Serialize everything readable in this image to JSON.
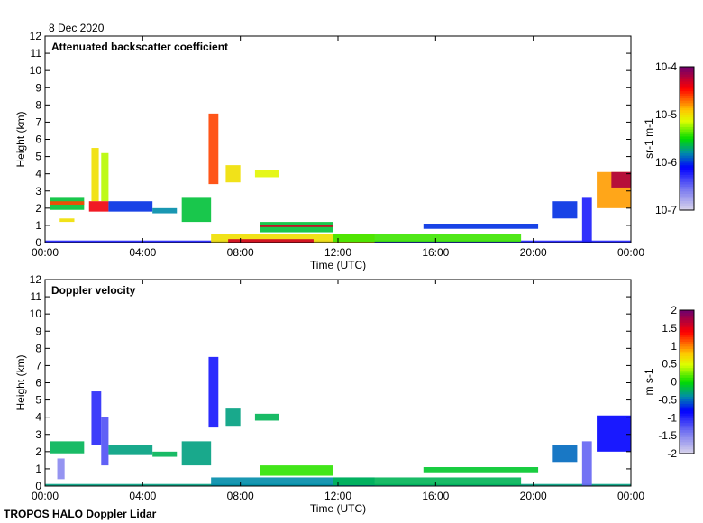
{
  "date_label": "8 Dec 2020",
  "footer": "TROPOS HALO Doppler Lidar",
  "chart_data": [
    {
      "type": "heatmap",
      "title": "Attenuated backscatter coefficient",
      "xlabel": "Time (UTC)",
      "ylabel": "Height (km)",
      "xlim": [
        0,
        24
      ],
      "ylim": [
        0,
        12
      ],
      "x_ticks": [
        "00:00",
        "04:00",
        "08:00",
        "12:00",
        "16:00",
        "20:00",
        "00:00"
      ],
      "y_ticks": [
        "0",
        "1",
        "2",
        "3",
        "4",
        "5",
        "6",
        "7",
        "8",
        "9",
        "10",
        "11",
        "12"
      ],
      "colorbar": {
        "label": "sr-1 m-1",
        "scale": "log",
        "range": [
          -7,
          -4
        ],
        "ticks": [
          "10-7",
          "10-6",
          "10-5",
          "10-4"
        ]
      },
      "features": [
        [
          0,
          24,
          0,
          0.12,
          -6.2
        ],
        [
          0.2,
          1.6,
          1.9,
          2.6,
          -5.6
        ],
        [
          0.2,
          1.6,
          2.2,
          2.4,
          -4.6
        ],
        [
          0.6,
          1.2,
          1.2,
          1.4,
          -5
        ],
        [
          1.9,
          2.2,
          2.4,
          5.5,
          -5.0
        ],
        [
          2.3,
          2.6,
          2.4,
          5.2,
          -5.2
        ],
        [
          1.8,
          2.6,
          1.8,
          2.4,
          -4.4
        ],
        [
          2.6,
          4.4,
          1.8,
          2.4,
          -6.0
        ],
        [
          4.4,
          5.4,
          1.7,
          2.0,
          -5.8
        ],
        [
          5.6,
          6.8,
          1.2,
          2.6,
          -5.6
        ],
        [
          6.7,
          7.1,
          3.4,
          7.5,
          -4.6
        ],
        [
          7.4,
          8.0,
          3.5,
          4.5,
          -5.0
        ],
        [
          8.6,
          9.6,
          3.8,
          4.2,
          -5.1
        ],
        [
          8.8,
          11.8,
          0.6,
          1.2,
          -5.6
        ],
        [
          8.8,
          11.8,
          0.9,
          1.0,
          -4.3
        ],
        [
          6.8,
          13.5,
          0.0,
          0.5,
          -5.0
        ],
        [
          7.5,
          11.0,
          0.0,
          0.2,
          -4.3
        ],
        [
          11.8,
          19.5,
          0.05,
          0.5,
          -5.4
        ],
        [
          15.5,
          20.2,
          0.8,
          1.1,
          -6.0
        ],
        [
          20.8,
          21.8,
          1.4,
          2.4,
          -6.0
        ],
        [
          22.0,
          22.4,
          0.0,
          2.6,
          -6.2
        ],
        [
          22.6,
          24,
          2.0,
          4.1,
          -4.8
        ],
        [
          23.2,
          24,
          3.2,
          4.1,
          -4.2
        ]
      ]
    },
    {
      "type": "heatmap",
      "title": "Doppler velocity",
      "xlabel": "Time (UTC)",
      "ylabel": "Height (km)",
      "xlim": [
        0,
        24
      ],
      "ylim": [
        0,
        12
      ],
      "x_ticks": [
        "00:00",
        "04:00",
        "08:00",
        "12:00",
        "16:00",
        "20:00",
        "00:00"
      ],
      "y_ticks": [
        "0",
        "1",
        "2",
        "3",
        "4",
        "5",
        "6",
        "7",
        "8",
        "9",
        "10",
        "11",
        "12"
      ],
      "colorbar": {
        "label": "m s-1",
        "scale": "linear",
        "range": [
          -2,
          2
        ],
        "ticks": [
          "-2",
          "-1.5",
          "-1",
          "-0.5",
          "0",
          "0.5",
          "1",
          "1.5",
          "2"
        ]
      },
      "features": [
        [
          0,
          24,
          0,
          0.12,
          -0.3
        ],
        [
          0.2,
          1.6,
          1.9,
          2.6,
          -0.2
        ],
        [
          0.5,
          0.8,
          0.4,
          1.6,
          -1.5
        ],
        [
          1.9,
          2.3,
          2.4,
          5.5,
          -1.0
        ],
        [
          2.3,
          2.6,
          1.2,
          4.0,
          -1.2
        ],
        [
          2.6,
          4.4,
          1.8,
          2.4,
          -0.3
        ],
        [
          4.4,
          5.4,
          1.7,
          2.0,
          -0.2
        ],
        [
          5.6,
          6.8,
          1.2,
          2.6,
          -0.3
        ],
        [
          6.7,
          7.1,
          3.4,
          7.5,
          -0.9
        ],
        [
          7.4,
          8.0,
          3.5,
          4.5,
          -0.3
        ],
        [
          8.6,
          9.6,
          3.8,
          4.2,
          -0.2
        ],
        [
          8.8,
          11.8,
          0.6,
          1.2,
          0.1
        ],
        [
          6.8,
          13.5,
          0.0,
          0.5,
          -0.4
        ],
        [
          11.8,
          19.5,
          0.05,
          0.5,
          -0.2
        ],
        [
          15.5,
          20.2,
          0.8,
          1.1,
          -0.1
        ],
        [
          20.8,
          21.8,
          1.4,
          2.4,
          -0.5
        ],
        [
          22.0,
          22.4,
          0.0,
          2.6,
          -1.3
        ],
        [
          22.6,
          24,
          2.0,
          4.1,
          -0.8
        ]
      ]
    }
  ]
}
